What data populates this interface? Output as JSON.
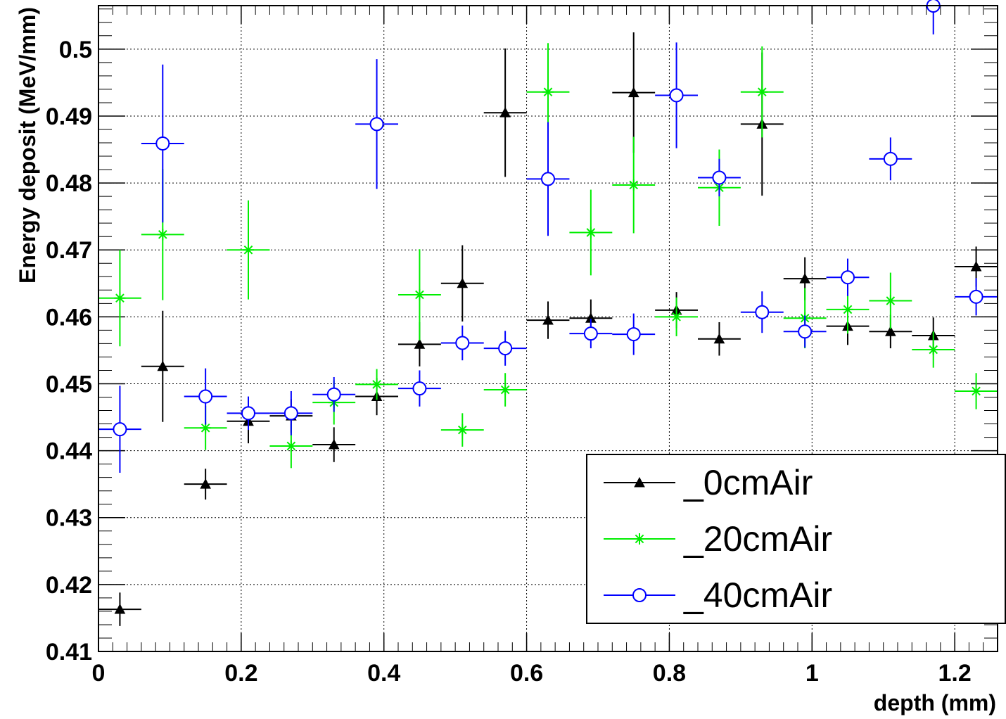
{
  "chart_data": {
    "type": "scatter",
    "xlabel": "depth (mm)",
    "ylabel": "Energy deposit (MeV/mm)",
    "xlim": [
      0,
      1.26
    ],
    "ylim": [
      0.41,
      0.5065
    ],
    "x_ticks": [
      0,
      0.2,
      0.4,
      0.6,
      0.8,
      1,
      1.2
    ],
    "x_tick_labels": [
      "0",
      "0.2",
      "0.4",
      "0.6",
      "0.8",
      "1",
      "1.2"
    ],
    "y_ticks": [
      0.41,
      0.42,
      0.43,
      0.44,
      0.45,
      0.46,
      0.47,
      0.48,
      0.49,
      0.5
    ],
    "y_tick_labels": [
      "0.41",
      "0.42",
      "0.43",
      "0.44",
      "0.45",
      "0.46",
      "0.47",
      "0.48",
      "0.49",
      "0.5"
    ],
    "grid": true,
    "legend_position": "bottom-right",
    "x_bin_half_width": 0.03,
    "x": [
      0.03,
      0.09,
      0.15,
      0.21,
      0.27,
      0.33,
      0.39,
      0.45,
      0.51,
      0.57,
      0.63,
      0.69,
      0.75,
      0.81,
      0.87,
      0.93,
      0.99,
      1.05,
      1.11,
      1.17,
      1.23
    ],
    "series": [
      {
        "name": "_0cmAir",
        "color": "#000000",
        "marker": "triangle",
        "values": [
          0.4163,
          0.4526,
          0.435,
          0.4444,
          0.4452,
          0.4409,
          0.4481,
          0.4559,
          0.465,
          0.4905,
          0.4595,
          0.4598,
          0.4935,
          0.461,
          0.4567,
          0.4888,
          0.4657,
          0.4586,
          0.4578,
          0.4572,
          0.4675
        ],
        "errors": [
          0.0025,
          0.0083,
          0.0023,
          0.0033,
          0.0025,
          0.0026,
          0.0028,
          0.0033,
          0.0057,
          0.0096,
          0.0028,
          0.0028,
          0.009,
          0.0027,
          0.0025,
          0.0107,
          0.0032,
          0.0028,
          0.0025,
          0.0027,
          0.003
        ]
      },
      {
        "name": "_20cmAir",
        "color": "#00ee00",
        "marker": "star",
        "values": [
          0.4628,
          0.4723,
          0.4434,
          0.47,
          0.4407,
          0.4472,
          0.4499,
          0.4633,
          0.4431,
          0.4491,
          0.4936,
          0.4726,
          0.4797,
          0.46,
          0.4793,
          0.4936,
          0.4598,
          0.4611,
          0.4624,
          0.4551,
          0.4489
        ],
        "errors": [
          0.0072,
          0.0098,
          0.0033,
          0.0074,
          0.0033,
          0.0033,
          0.0023,
          0.0068,
          0.0025,
          0.0025,
          0.0073,
          0.0064,
          0.0072,
          0.0029,
          0.0057,
          0.0068,
          0.0045,
          0.0036,
          0.0042,
          0.0027,
          0.0027
        ]
      },
      {
        "name": "_40cmAir",
        "color": "#0000ff",
        "marker": "open-circle",
        "values": [
          0.4432,
          0.4859,
          0.4481,
          0.4456,
          0.4456,
          0.4484,
          0.4888,
          0.4493,
          0.4561,
          0.4553,
          0.4806,
          0.4575,
          0.4574,
          0.4931,
          0.4808,
          0.4607,
          0.4578,
          0.4659,
          0.4836,
          0.5065,
          0.463
        ],
        "errors": [
          0.0065,
          0.0118,
          0.0042,
          0.0025,
          0.0033,
          0.0026,
          0.0097,
          0.0027,
          0.0026,
          0.0026,
          0.0085,
          0.0022,
          0.0031,
          0.0079,
          0.0028,
          0.0031,
          0.0024,
          0.0028,
          0.0032,
          0.0043,
          0.0028
        ]
      }
    ]
  }
}
